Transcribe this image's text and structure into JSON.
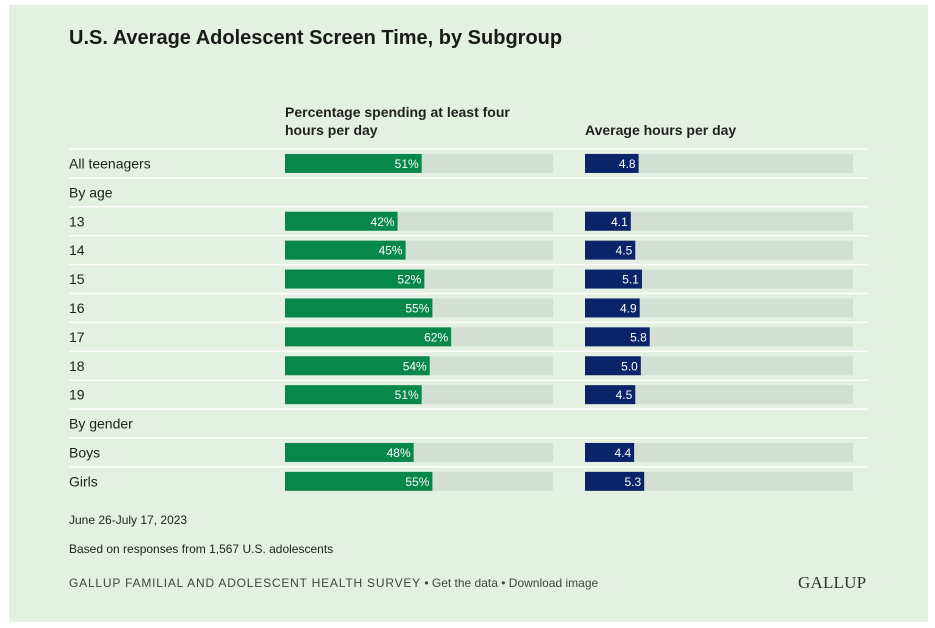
{
  "title": "U.S. Average Adolescent Screen Time, by Subgroup",
  "columns": {
    "left_header": "Percentage spending at least four hours per day",
    "right_header": "Average hours per day"
  },
  "colors": {
    "green": "#078849",
    "navy": "#0b2469",
    "track": "#d3dfd2",
    "background": "#e4f0e1"
  },
  "chart_data": {
    "type": "bar",
    "rows": [
      {
        "label": "All teenagers",
        "kind": "row",
        "pct": 51,
        "hours": 4.8,
        "pct_label": "51%",
        "hours_label": "4.8"
      },
      {
        "label": "By age",
        "kind": "group"
      },
      {
        "label": "13",
        "kind": "row",
        "pct": 42,
        "hours": 4.1,
        "pct_label": "42%",
        "hours_label": "4.1"
      },
      {
        "label": "14",
        "kind": "row",
        "pct": 45,
        "hours": 4.5,
        "pct_label": "45%",
        "hours_label": "4.5"
      },
      {
        "label": "15",
        "kind": "row",
        "pct": 52,
        "hours": 5.1,
        "pct_label": "52%",
        "hours_label": "5.1"
      },
      {
        "label": "16",
        "kind": "row",
        "pct": 55,
        "hours": 4.9,
        "pct_label": "55%",
        "hours_label": "4.9"
      },
      {
        "label": "17",
        "kind": "row",
        "pct": 62,
        "hours": 5.8,
        "pct_label": "62%",
        "hours_label": "5.8"
      },
      {
        "label": "18",
        "kind": "row",
        "pct": 54,
        "hours": 5.0,
        "pct_label": "54%",
        "hours_label": "5.0"
      },
      {
        "label": "19",
        "kind": "row",
        "pct": 51,
        "hours": 4.5,
        "pct_label": "51%",
        "hours_label": "4.5"
      },
      {
        "label": "By gender",
        "kind": "group"
      },
      {
        "label": "Boys",
        "kind": "row",
        "pct": 48,
        "hours": 4.4,
        "pct_label": "48%",
        "hours_label": "4.4"
      },
      {
        "label": "Girls",
        "kind": "row",
        "pct": 55,
        "hours": 5.3,
        "pct_label": "55%",
        "hours_label": "5.3"
      }
    ],
    "pct_range": [
      0,
      100
    ],
    "hours_range": [
      0,
      24
    ]
  },
  "footer": {
    "date": "June 26-July 17, 2023",
    "note": "Based on responses from 1,567 U.S. adolescents",
    "source": "GALLUP FAMILIAL AND ADOLESCENT HEALTH SURVEY",
    "separator": " • ",
    "get_data": "Get the data",
    "download": "Download image",
    "logo": "GALLUP"
  }
}
